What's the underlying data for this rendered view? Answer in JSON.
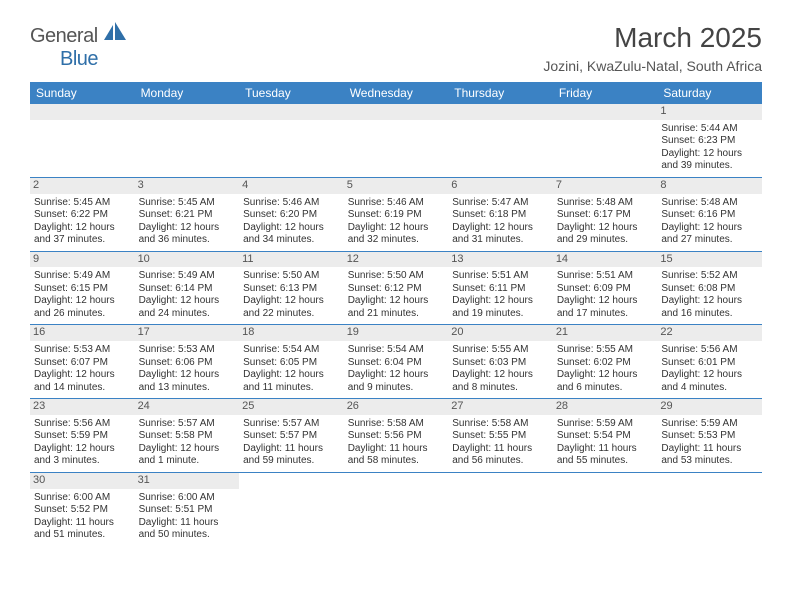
{
  "logo": {
    "general": "General",
    "blue": "Blue"
  },
  "header": {
    "title": "March 2025",
    "subtitle": "Jozini, KwaZulu-Natal, South Africa"
  },
  "colors": {
    "header_bg": "#3b82c4",
    "header_text": "#ffffff",
    "daynum_bg": "#ececec",
    "border": "#3b82c4"
  },
  "weekdays": [
    "Sunday",
    "Monday",
    "Tuesday",
    "Wednesday",
    "Thursday",
    "Friday",
    "Saturday"
  ],
  "weeks": [
    [
      null,
      null,
      null,
      null,
      null,
      null,
      {
        "n": "1",
        "sr": "Sunrise: 5:44 AM",
        "ss": "Sunset: 6:23 PM",
        "d1": "Daylight: 12 hours",
        "d2": "and 39 minutes."
      }
    ],
    [
      {
        "n": "2",
        "sr": "Sunrise: 5:45 AM",
        "ss": "Sunset: 6:22 PM",
        "d1": "Daylight: 12 hours",
        "d2": "and 37 minutes."
      },
      {
        "n": "3",
        "sr": "Sunrise: 5:45 AM",
        "ss": "Sunset: 6:21 PM",
        "d1": "Daylight: 12 hours",
        "d2": "and 36 minutes."
      },
      {
        "n": "4",
        "sr": "Sunrise: 5:46 AM",
        "ss": "Sunset: 6:20 PM",
        "d1": "Daylight: 12 hours",
        "d2": "and 34 minutes."
      },
      {
        "n": "5",
        "sr": "Sunrise: 5:46 AM",
        "ss": "Sunset: 6:19 PM",
        "d1": "Daylight: 12 hours",
        "d2": "and 32 minutes."
      },
      {
        "n": "6",
        "sr": "Sunrise: 5:47 AM",
        "ss": "Sunset: 6:18 PM",
        "d1": "Daylight: 12 hours",
        "d2": "and 31 minutes."
      },
      {
        "n": "7",
        "sr": "Sunrise: 5:48 AM",
        "ss": "Sunset: 6:17 PM",
        "d1": "Daylight: 12 hours",
        "d2": "and 29 minutes."
      },
      {
        "n": "8",
        "sr": "Sunrise: 5:48 AM",
        "ss": "Sunset: 6:16 PM",
        "d1": "Daylight: 12 hours",
        "d2": "and 27 minutes."
      }
    ],
    [
      {
        "n": "9",
        "sr": "Sunrise: 5:49 AM",
        "ss": "Sunset: 6:15 PM",
        "d1": "Daylight: 12 hours",
        "d2": "and 26 minutes."
      },
      {
        "n": "10",
        "sr": "Sunrise: 5:49 AM",
        "ss": "Sunset: 6:14 PM",
        "d1": "Daylight: 12 hours",
        "d2": "and 24 minutes."
      },
      {
        "n": "11",
        "sr": "Sunrise: 5:50 AM",
        "ss": "Sunset: 6:13 PM",
        "d1": "Daylight: 12 hours",
        "d2": "and 22 minutes."
      },
      {
        "n": "12",
        "sr": "Sunrise: 5:50 AM",
        "ss": "Sunset: 6:12 PM",
        "d1": "Daylight: 12 hours",
        "d2": "and 21 minutes."
      },
      {
        "n": "13",
        "sr": "Sunrise: 5:51 AM",
        "ss": "Sunset: 6:11 PM",
        "d1": "Daylight: 12 hours",
        "d2": "and 19 minutes."
      },
      {
        "n": "14",
        "sr": "Sunrise: 5:51 AM",
        "ss": "Sunset: 6:09 PM",
        "d1": "Daylight: 12 hours",
        "d2": "and 17 minutes."
      },
      {
        "n": "15",
        "sr": "Sunrise: 5:52 AM",
        "ss": "Sunset: 6:08 PM",
        "d1": "Daylight: 12 hours",
        "d2": "and 16 minutes."
      }
    ],
    [
      {
        "n": "16",
        "sr": "Sunrise: 5:53 AM",
        "ss": "Sunset: 6:07 PM",
        "d1": "Daylight: 12 hours",
        "d2": "and 14 minutes."
      },
      {
        "n": "17",
        "sr": "Sunrise: 5:53 AM",
        "ss": "Sunset: 6:06 PM",
        "d1": "Daylight: 12 hours",
        "d2": "and 13 minutes."
      },
      {
        "n": "18",
        "sr": "Sunrise: 5:54 AM",
        "ss": "Sunset: 6:05 PM",
        "d1": "Daylight: 12 hours",
        "d2": "and 11 minutes."
      },
      {
        "n": "19",
        "sr": "Sunrise: 5:54 AM",
        "ss": "Sunset: 6:04 PM",
        "d1": "Daylight: 12 hours",
        "d2": "and 9 minutes."
      },
      {
        "n": "20",
        "sr": "Sunrise: 5:55 AM",
        "ss": "Sunset: 6:03 PM",
        "d1": "Daylight: 12 hours",
        "d2": "and 8 minutes."
      },
      {
        "n": "21",
        "sr": "Sunrise: 5:55 AM",
        "ss": "Sunset: 6:02 PM",
        "d1": "Daylight: 12 hours",
        "d2": "and 6 minutes."
      },
      {
        "n": "22",
        "sr": "Sunrise: 5:56 AM",
        "ss": "Sunset: 6:01 PM",
        "d1": "Daylight: 12 hours",
        "d2": "and 4 minutes."
      }
    ],
    [
      {
        "n": "23",
        "sr": "Sunrise: 5:56 AM",
        "ss": "Sunset: 5:59 PM",
        "d1": "Daylight: 12 hours",
        "d2": "and 3 minutes."
      },
      {
        "n": "24",
        "sr": "Sunrise: 5:57 AM",
        "ss": "Sunset: 5:58 PM",
        "d1": "Daylight: 12 hours",
        "d2": "and 1 minute."
      },
      {
        "n": "25",
        "sr": "Sunrise: 5:57 AM",
        "ss": "Sunset: 5:57 PM",
        "d1": "Daylight: 11 hours",
        "d2": "and 59 minutes."
      },
      {
        "n": "26",
        "sr": "Sunrise: 5:58 AM",
        "ss": "Sunset: 5:56 PM",
        "d1": "Daylight: 11 hours",
        "d2": "and 58 minutes."
      },
      {
        "n": "27",
        "sr": "Sunrise: 5:58 AM",
        "ss": "Sunset: 5:55 PM",
        "d1": "Daylight: 11 hours",
        "d2": "and 56 minutes."
      },
      {
        "n": "28",
        "sr": "Sunrise: 5:59 AM",
        "ss": "Sunset: 5:54 PM",
        "d1": "Daylight: 11 hours",
        "d2": "and 55 minutes."
      },
      {
        "n": "29",
        "sr": "Sunrise: 5:59 AM",
        "ss": "Sunset: 5:53 PM",
        "d1": "Daylight: 11 hours",
        "d2": "and 53 minutes."
      }
    ],
    [
      {
        "n": "30",
        "sr": "Sunrise: 6:00 AM",
        "ss": "Sunset: 5:52 PM",
        "d1": "Daylight: 11 hours",
        "d2": "and 51 minutes."
      },
      {
        "n": "31",
        "sr": "Sunrise: 6:00 AM",
        "ss": "Sunset: 5:51 PM",
        "d1": "Daylight: 11 hours",
        "d2": "and 50 minutes."
      },
      null,
      null,
      null,
      null,
      null
    ]
  ]
}
